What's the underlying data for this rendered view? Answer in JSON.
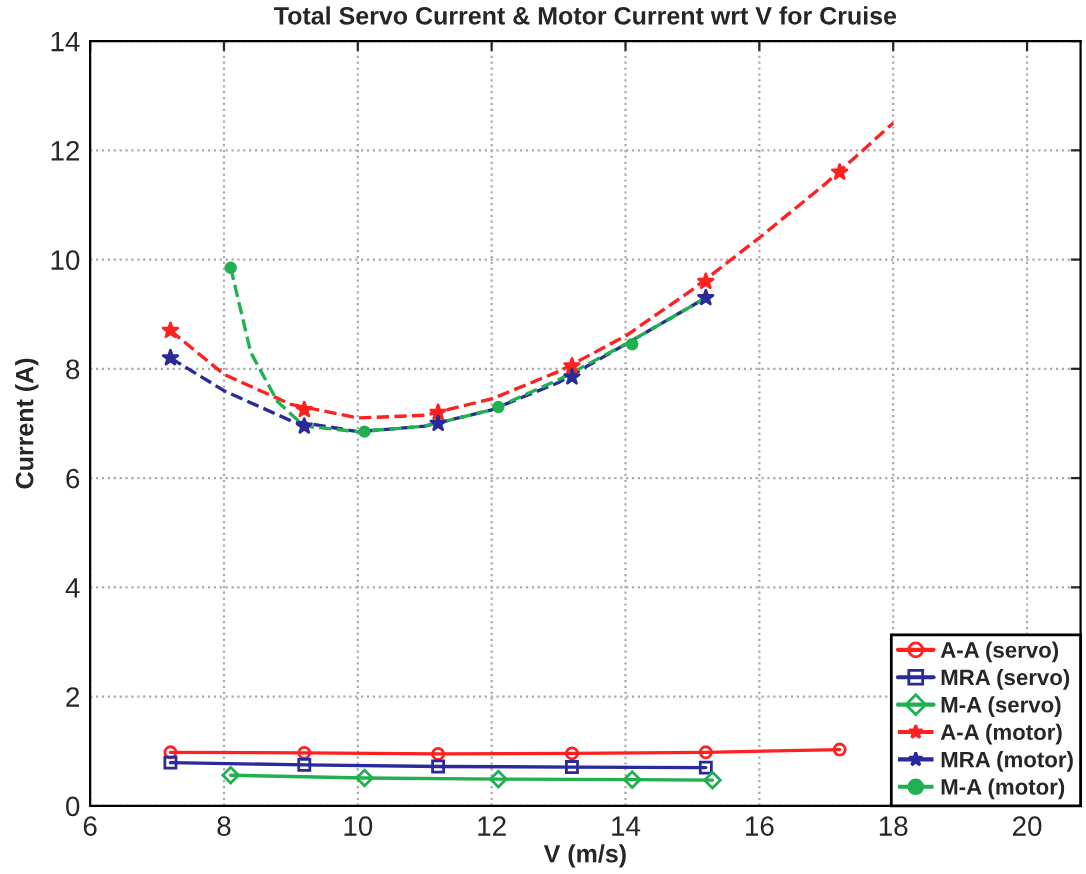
{
  "chart_data": {
    "type": "line",
    "title": "Total Servo Current & Motor Current wrt V for Cruise",
    "xlabel": "V (m/s)",
    "ylabel": "Current (A)",
    "xlim": [
      6,
      20.8
    ],
    "xticks": [
      6,
      8,
      10,
      12,
      14,
      16,
      18,
      20
    ],
    "ylim": [
      0,
      14
    ],
    "yticks": [
      0,
      2,
      4,
      6,
      8,
      10,
      12,
      14
    ],
    "grid": true,
    "legend": "bottom right",
    "series": [
      {
        "name": "A-A (servo)",
        "color": "#ff2020",
        "marker": "circle",
        "line_style": "solid",
        "x": [
          7.2,
          9.2,
          11.2,
          13.2,
          15.2,
          17.2
        ],
        "values": [
          0.98,
          0.97,
          0.95,
          0.96,
          0.98,
          1.03
        ]
      },
      {
        "name": "MRA (servo)",
        "color": "#2a2a9a",
        "marker": "square",
        "line_style": "solid",
        "x": [
          7.2,
          9.2,
          11.2,
          13.2,
          15.2
        ],
        "values": [
          0.79,
          0.75,
          0.72,
          0.71,
          0.7
        ]
      },
      {
        "name": "M-A (servo)",
        "color": "#20b050",
        "marker": "diamond",
        "line_style": "solid",
        "x": [
          8.1,
          10.1,
          12.1,
          14.1,
          15.3
        ],
        "values": [
          0.56,
          0.51,
          0.49,
          0.48,
          0.47
        ]
      },
      {
        "name": "A-A (motor)",
        "color": "#ff2020",
        "type": "scatter",
        "marker": "star",
        "line_style": "dashed",
        "x": [
          7.2,
          9.2,
          11.2,
          13.2,
          15.2,
          17.2
        ],
        "values": [
          8.7,
          7.25,
          7.2,
          8.05,
          9.6,
          11.6
        ]
      },
      {
        "name": "MRA (motor)",
        "color": "#2a2a9a",
        "type": "scatter",
        "marker": "star",
        "line_style": "dashed",
        "x": [
          7.2,
          9.2,
          11.2,
          13.2,
          15.2
        ],
        "values": [
          8.2,
          6.95,
          7.0,
          7.85,
          9.3
        ]
      },
      {
        "name": "M-A (motor)",
        "color": "#20b050",
        "type": "scatter",
        "marker": "circle",
        "line_style": "dashed",
        "x": [
          8.1,
          10.1,
          12.1,
          14.1
        ],
        "values": [
          9.85,
          6.85,
          7.3,
          8.45
        ]
      },
      {
        "color": "#ff2020",
        "marker": "none",
        "line_style": "dashed",
        "x": [
          7.2,
          8,
          9,
          10,
          11,
          12,
          13,
          14,
          15,
          16,
          17,
          18
        ],
        "values": [
          8.7,
          7.9,
          7.35,
          7.1,
          7.15,
          7.45,
          7.95,
          8.6,
          9.45,
          10.4,
          11.4,
          12.5
        ]
      },
      {
        "color": "#2a2a9a",
        "marker": "none",
        "line_style": "dashed",
        "x": [
          7.2,
          8,
          9,
          10,
          11,
          12,
          13,
          14,
          15.2
        ],
        "values": [
          8.2,
          7.6,
          7.05,
          6.85,
          6.95,
          7.25,
          7.75,
          8.45,
          9.3
        ]
      },
      {
        "color": "#20b050",
        "marker": "none",
        "line_style": "dashed",
        "x": [
          8.1,
          8.4,
          8.8,
          9.2,
          10,
          11,
          12,
          13,
          14,
          15.2
        ],
        "values": [
          9.85,
          8.3,
          7.4,
          6.95,
          6.85,
          6.95,
          7.25,
          7.8,
          8.45,
          9.3
        ]
      }
    ]
  }
}
